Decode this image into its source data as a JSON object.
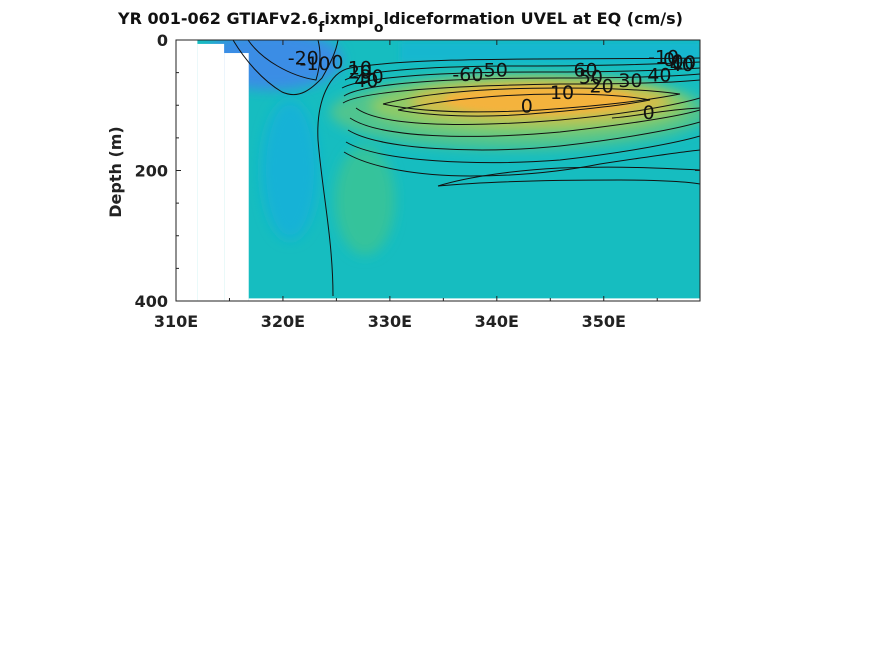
{
  "chart_data": {
    "type": "contour",
    "title": "YR 001-062 GTIAFv2.6_f ixmpi_o ldiceformation UVEL at EQ (cm/s)",
    "title_parts": {
      "p1": "YR 001-062 GTIAFv2.6",
      "sub1": "f",
      "p2": "ixmpi",
      "sub2": "o",
      "p3": "ldiceformation UVEL at EQ (cm/s)"
    },
    "xlabel": "",
    "ylabel": "Depth (m)",
    "xlim": [
      310,
      359
    ],
    "ylim": [
      0,
      400
    ],
    "y_reversed": true,
    "x_ticks": [
      310,
      320,
      330,
      340,
      350
    ],
    "x_tick_labels": [
      "310E",
      "320E",
      "330E",
      "340E",
      "350E"
    ],
    "y_ticks": [
      0,
      200,
      400
    ],
    "y_tick_labels": [
      "0",
      "200",
      "400"
    ],
    "colormap": [
      "#3d8ce6",
      "#1aa3e0",
      "#14bcc9",
      "#2fc2a6",
      "#8dc86a",
      "#d9bb45",
      "#f4b33c"
    ],
    "contour_labels": [
      {
        "text": "-20",
        "lon": 321.9,
        "depth": 27
      },
      {
        "text": "-10",
        "lon": 323.0,
        "depth": 35
      },
      {
        "text": "0",
        "lon": 325.1,
        "depth": 33
      },
      {
        "text": "10",
        "lon": 327.2,
        "depth": 42
      },
      {
        "text": "20",
        "lon": 327.2,
        "depth": 48
      },
      {
        "text": "30",
        "lon": 328.3,
        "depth": 55
      },
      {
        "text": "40",
        "lon": 327.8,
        "depth": 61
      },
      {
        "text": "-60",
        "lon": 337.3,
        "depth": 52
      },
      {
        "text": "50",
        "lon": 339.9,
        "depth": 45
      },
      {
        "text": "60",
        "lon": 348.3,
        "depth": 45
      },
      {
        "text": "50",
        "lon": 348.8,
        "depth": 56
      },
      {
        "text": "40",
        "lon": 355.2,
        "depth": 53
      },
      {
        "text": "30",
        "lon": 352.5,
        "depth": 61
      },
      {
        "text": "20",
        "lon": 349.8,
        "depth": 70
      },
      {
        "text": "10",
        "lon": 346.1,
        "depth": 80
      },
      {
        "text": "-10",
        "lon": 355.6,
        "depth": 25
      },
      {
        "text": "0",
        "lon": 356.1,
        "depth": 29
      },
      {
        "text": "0",
        "lon": 356.9,
        "depth": 32
      },
      {
        "text": "10",
        "lon": 357.5,
        "depth": 34
      },
      {
        "text": "40",
        "lon": 357.3,
        "depth": 37
      },
      {
        "text": "0",
        "lon": 342.8,
        "depth": 100
      },
      {
        "text": "0",
        "lon": 354.2,
        "depth": 110
      }
    ],
    "land_mask": [
      {
        "lon_min": 310,
        "lon_max": 312.0,
        "depth_min": 0,
        "depth_max": 400
      },
      {
        "lon_min": 312.0,
        "lon_max": 314.5,
        "depth_min": 6,
        "depth_max": 400
      },
      {
        "lon_min": 314.5,
        "lon_max": 316.8,
        "depth_min": 20,
        "depth_max": 400
      },
      {
        "lon_min": 316.8,
        "lon_max": 359,
        "depth_min": 396,
        "depth_max": 400
      }
    ]
  }
}
